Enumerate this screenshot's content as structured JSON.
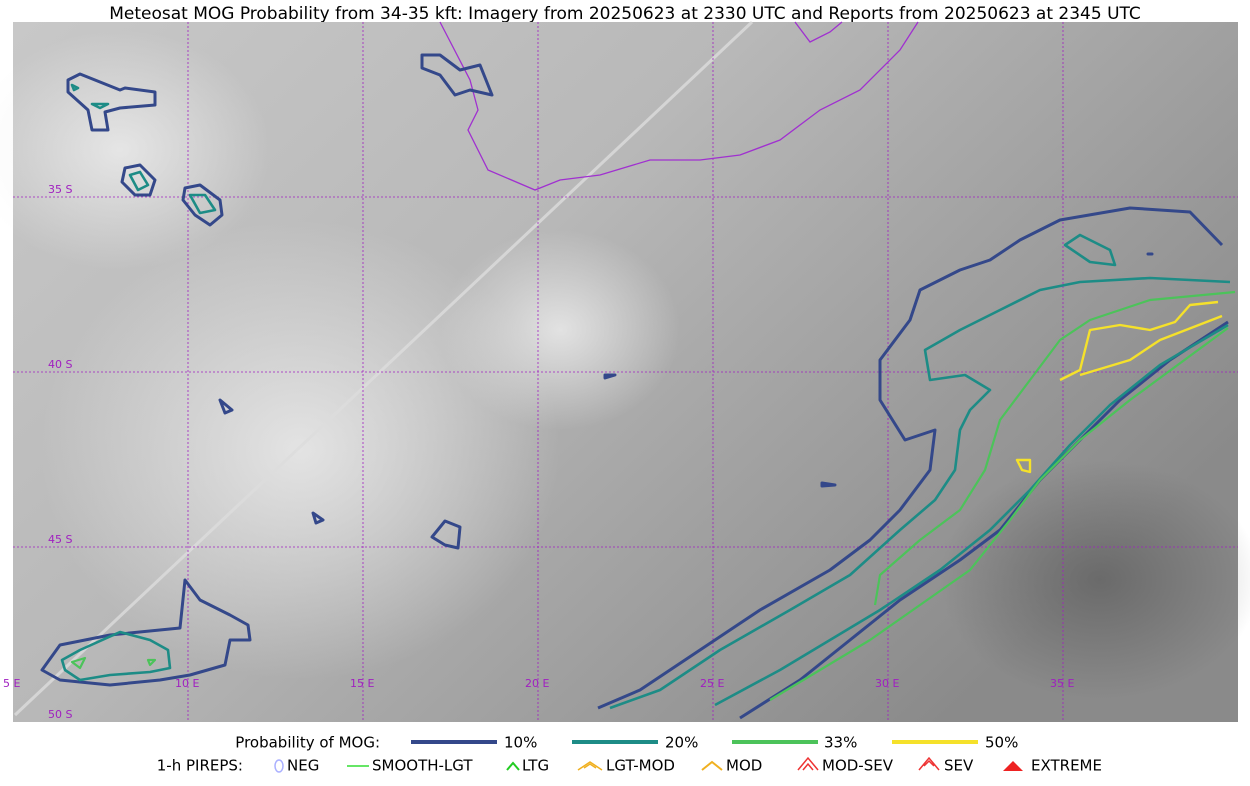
{
  "title": "Meteosat MOG Probability from 34-35 kft: Imagery from 20250623 at 2330 UTC and Reports from 20250623 at 2345 UTC",
  "map": {
    "lat_labels": [
      "35 S",
      "40 S",
      "45 S",
      "50 S"
    ],
    "lon_labels": [
      "5 E",
      "10 E",
      "15 E",
      "20 E",
      "25 E",
      "30 E",
      "35 E"
    ]
  },
  "legend": {
    "probability_label": "Probability of MOG:",
    "probability_items": [
      "10%",
      "20%",
      "33%",
      "50%"
    ],
    "pirep_label": "1-h PIREPS:",
    "pirep_items": [
      "NEG",
      "SMOOTH-LGT",
      "LTG",
      "LGT-MOD",
      "MOD",
      "MOD-SEV",
      "SEV",
      "EXTREME"
    ]
  }
}
